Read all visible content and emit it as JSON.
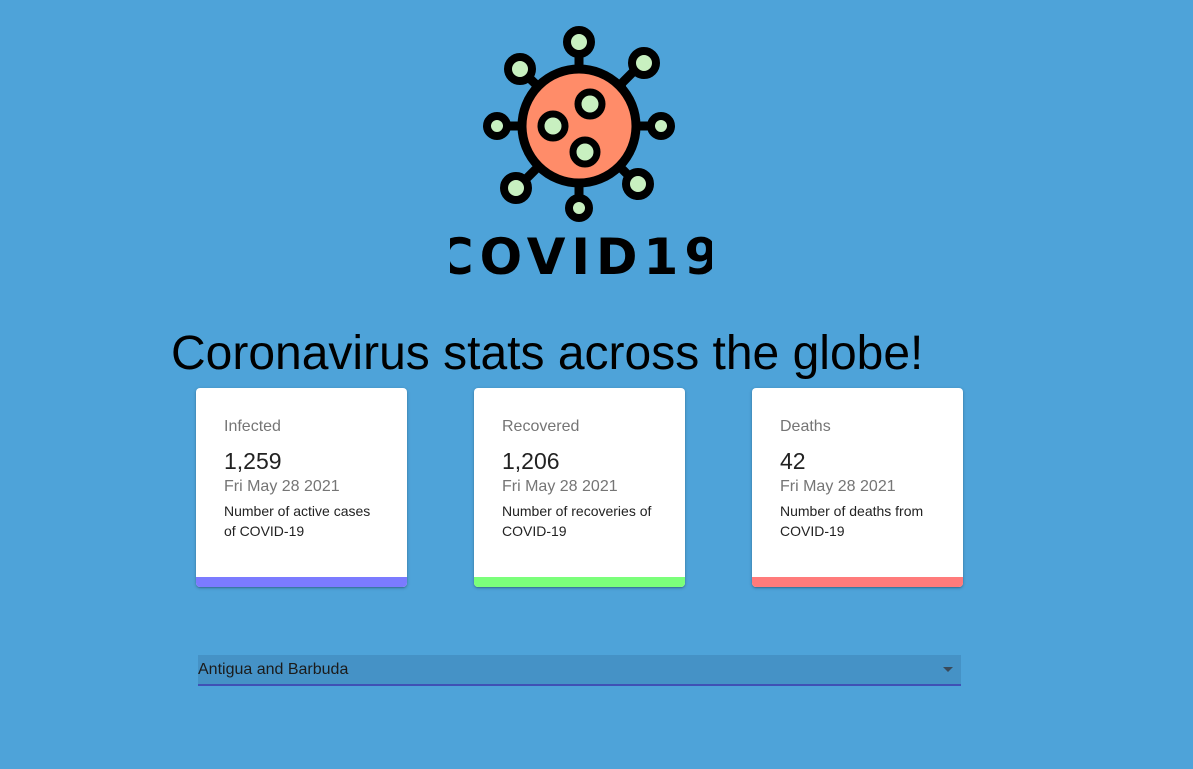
{
  "logo": {
    "text": "COVID19",
    "colors": {
      "virus_body": "#ff8c69",
      "outline": "#000000",
      "spots": "#c8f0c0"
    }
  },
  "headline": "Coronavirus stats across the globe!",
  "cards": [
    {
      "title": "Infected",
      "value": "1,259",
      "date": "Fri May 28 2021",
      "description": "Number of active cases of COVID-19",
      "accent_color": "#7b7bff"
    },
    {
      "title": "Recovered",
      "value": "1,206",
      "date": "Fri May 28 2021",
      "description": "Number of recoveries of COVID-19",
      "accent_color": "#7bff7b"
    },
    {
      "title": "Deaths",
      "value": "42",
      "date": "Fri May 28 2021",
      "description": "Number of deaths from COVID-19",
      "accent_color": "#ff7b7b"
    }
  ],
  "country_select": {
    "selected": "Antigua and Barbuda",
    "icon": "chevron-down-icon"
  },
  "colors": {
    "background": "#4ea3d9",
    "select_underline": "#3f51b5"
  }
}
